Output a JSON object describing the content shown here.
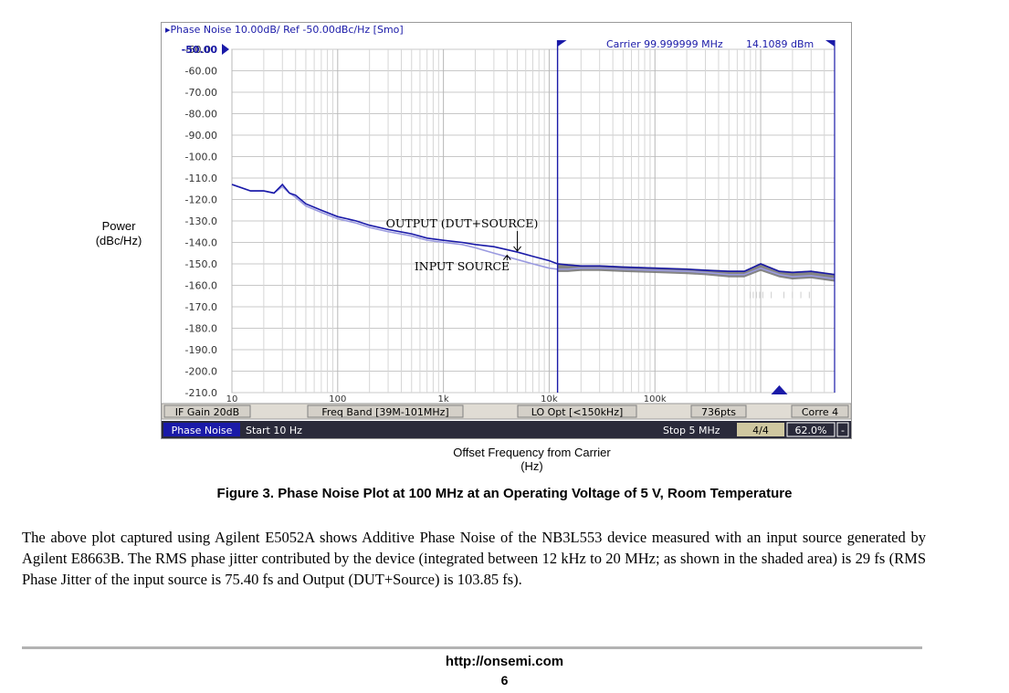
{
  "chart_data": {
    "type": "line",
    "title": "Phase Noise 10.00dB/ Ref -50.00dBc/Hz [Smo]",
    "carrier_label": "Carrier 99.999999 MHz",
    "carrier_power": "14.1089 dBm",
    "ylabel": "Power (dBc/Hz)",
    "xlabel": "Offset Frequency from Carrier (Hz)",
    "x_scale": "log",
    "xlim": [
      10,
      5000000
    ],
    "ylim": [
      -210,
      -50
    ],
    "y_ticks": [
      "-50.00",
      "-60.00",
      "-70.00",
      "-80.00",
      "-90.00",
      "-100.0",
      "-110.0",
      "-120.0",
      "-130.0",
      "-140.0",
      "-150.0",
      "-160.0",
      "-170.0",
      "-180.0",
      "-190.0",
      "-200.0",
      "-210.0"
    ],
    "x_ticks": [
      "10",
      "100",
      "1k",
      "10k",
      "100k"
    ],
    "grid": true,
    "series": [
      {
        "name": "OUTPUT (DUT+SOURCE)",
        "color": "#1a1aa8",
        "x": [
          10,
          15,
          20,
          25,
          30,
          35,
          40,
          50,
          70,
          100,
          150,
          200,
          300,
          500,
          700,
          1000,
          1500,
          2000,
          3000,
          5000,
          7000,
          10000,
          12000,
          15000,
          20000,
          30000,
          50000,
          100000,
          200000,
          300000,
          500000,
          700000,
          1000000,
          1500000,
          2000000,
          3000000,
          5000000
        ],
        "y": [
          -113,
          -116,
          -116,
          -117,
          -113,
          -117,
          -118,
          -122,
          -125,
          -128,
          -130,
          -132,
          -134,
          -136,
          -138,
          -139,
          -140,
          -141,
          -142,
          -144.5,
          -146.5,
          -148.5,
          -150,
          -150.5,
          -151,
          -151,
          -151.5,
          -152,
          -152.5,
          -153,
          -153.5,
          -153.5,
          -150,
          -153.5,
          -154,
          -153.5,
          -155
        ]
      },
      {
        "name": "INPUT SOURCE",
        "color": "#9a9ae0",
        "x": [
          10,
          15,
          20,
          25,
          30,
          35,
          40,
          50,
          70,
          100,
          150,
          200,
          300,
          500,
          700,
          1000,
          1500,
          2000,
          3000,
          5000,
          7000,
          10000,
          12000,
          15000,
          20000,
          30000,
          50000,
          100000,
          200000,
          300000,
          500000,
          700000,
          1000000,
          1500000,
          2000000,
          3000000,
          5000000
        ],
        "y": [
          -113,
          -116,
          -116,
          -117,
          -114,
          -117,
          -119,
          -123,
          -126,
          -129,
          -131,
          -133,
          -135,
          -137,
          -139,
          -140,
          -141,
          -142.5,
          -145,
          -148,
          -150,
          -152,
          -152.5,
          -152.5,
          -152,
          -152,
          -152.5,
          -153,
          -153.5,
          -154,
          -155,
          -155,
          -152,
          -155,
          -156,
          -155.5,
          -157
        ]
      }
    ],
    "shaded_region": {
      "x_start": 12000,
      "x_end": 20000000,
      "color": "#707070"
    },
    "annotations": [
      {
        "text": "OUTPUT (DUT+SOURCE)",
        "x": 1500,
        "y": -133,
        "arrow_to_x": 5000,
        "arrow_to_y": -144
      },
      {
        "text": "INPUT SOURCE",
        "x": 1500,
        "y": -153,
        "arrow_to_x": 4000,
        "arrow_to_y": -146
      }
    ],
    "markers": {
      "left_ref_label": "-50.00",
      "vertical_marker_x": 12000
    },
    "status_bar": [
      "IF Gain 20dB",
      "Freq Band [39M-101MHz]",
      "LO Opt [<150kHz]",
      "736pts",
      "Corre 4"
    ],
    "bottom_bar": {
      "mode": "Phase Noise",
      "start": "Start 10 Hz",
      "stop": "Stop 5 MHz",
      "avg": "4/4",
      "percent": "62.0%",
      "dash": "-"
    }
  },
  "labels": {
    "ylabel_line1": "Power",
    "ylabel_line2": "(dBc/Hz)",
    "xlabel_line1": "Offset Frequency from Carrier",
    "xlabel_line2": "(Hz)"
  },
  "caption": "Figure 3. Phase Noise Plot at 100 MHz at an Operating Voltage of 5 V, Room Temperature",
  "body_text": "The above plot captured using Agilent E5052A shows Additive Phase Noise of the NB3L553 device measured with an input source generated by Agilent E8663B. The RMS phase jitter contributed by the device (integrated between 12 kHz to 20 MHz; as shown in the shaded area) is 29 fs (RMS Phase Jitter of the input source is 75.40 fs and Output (DUT+Source) is 103.85 fs).",
  "footer": {
    "url": "http://onsemi.com",
    "page": "6"
  }
}
